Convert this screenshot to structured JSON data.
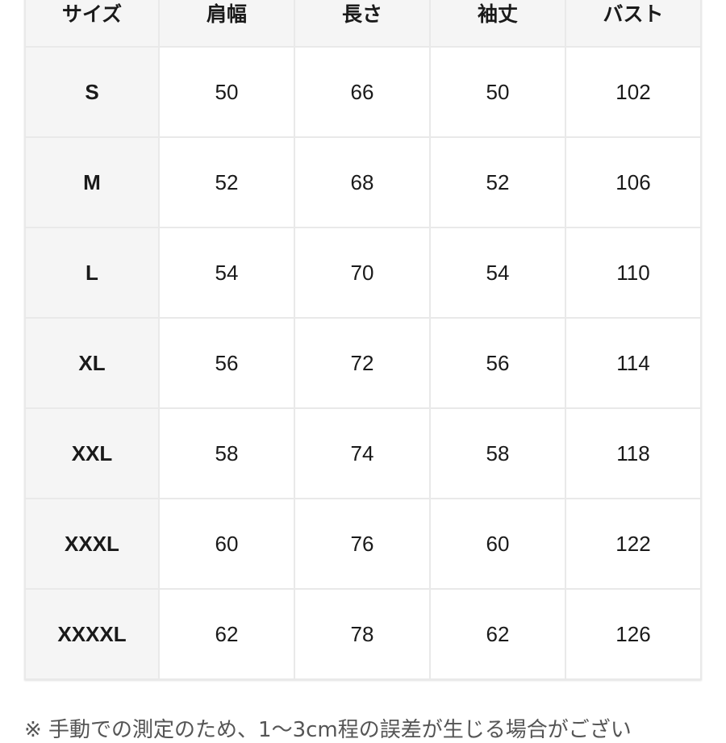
{
  "table": {
    "headers": [
      "サイズ",
      "肩幅",
      "長さ",
      "袖丈",
      "バスト"
    ],
    "rows": [
      [
        "S",
        "50",
        "66",
        "50",
        "102"
      ],
      [
        "M",
        "52",
        "68",
        "52",
        "106"
      ],
      [
        "L",
        "54",
        "70",
        "54",
        "110"
      ],
      [
        "XL",
        "56",
        "72",
        "56",
        "114"
      ],
      [
        "XXL",
        "58",
        "74",
        "58",
        "118"
      ],
      [
        "XXXL",
        "60",
        "76",
        "60",
        "122"
      ],
      [
        "XXXXL",
        "62",
        "78",
        "62",
        "126"
      ]
    ]
  },
  "note": "※ 手動での測定のため、1～3cm程の誤差が生じる場合がござい"
}
